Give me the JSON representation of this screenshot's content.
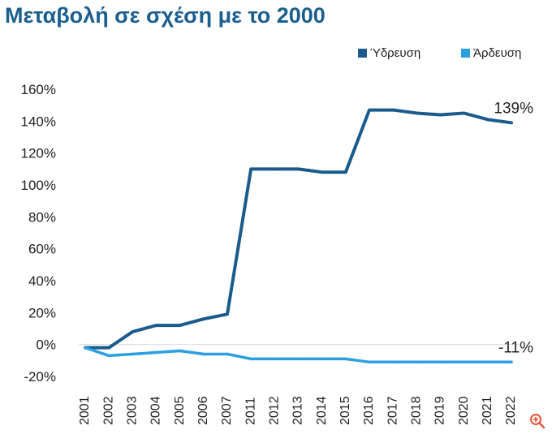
{
  "title": "Μεταβολή σε σχέση με το 2000",
  "chart_data": {
    "type": "line",
    "categories": [
      "2001",
      "2002",
      "2003",
      "2004",
      "2005",
      "2006",
      "2007",
      "2011",
      "2012",
      "2013",
      "2014",
      "2015",
      "2016",
      "2017",
      "2018",
      "2019",
      "2020",
      "2021",
      "2022"
    ],
    "series": [
      {
        "name": "Ύδρευση",
        "color": "#1a5b8c",
        "values": [
          -2,
          -2,
          8,
          12,
          12,
          16,
          19,
          110,
          110,
          110,
          108,
          108,
          147,
          147,
          145,
          144,
          145,
          141,
          139
        ]
      },
      {
        "name": "Άρδευση",
        "color": "#2b9fe0",
        "values": [
          -2,
          -7,
          -6,
          -5,
          -4,
          -6,
          -6,
          -9,
          -9,
          -9,
          -9,
          -9,
          -11,
          -11,
          -11,
          -11,
          -11,
          -11,
          -11
        ]
      }
    ],
    "ylim": [
      -20,
      160
    ],
    "yticks": [
      "160%",
      "140%",
      "120%",
      "100%",
      "80%",
      "60%",
      "40%",
      "20%",
      "0%",
      "-20%"
    ],
    "ytick_values": [
      160,
      140,
      120,
      100,
      80,
      60,
      40,
      20,
      0,
      -20
    ],
    "annotations": [
      {
        "text": "139%",
        "series": 0,
        "index": 18
      },
      {
        "text": "-11%",
        "series": 1,
        "index": 18
      }
    ],
    "legend": "top-right",
    "grid": false
  },
  "icons": {
    "zoom": "zoom-in-icon"
  }
}
